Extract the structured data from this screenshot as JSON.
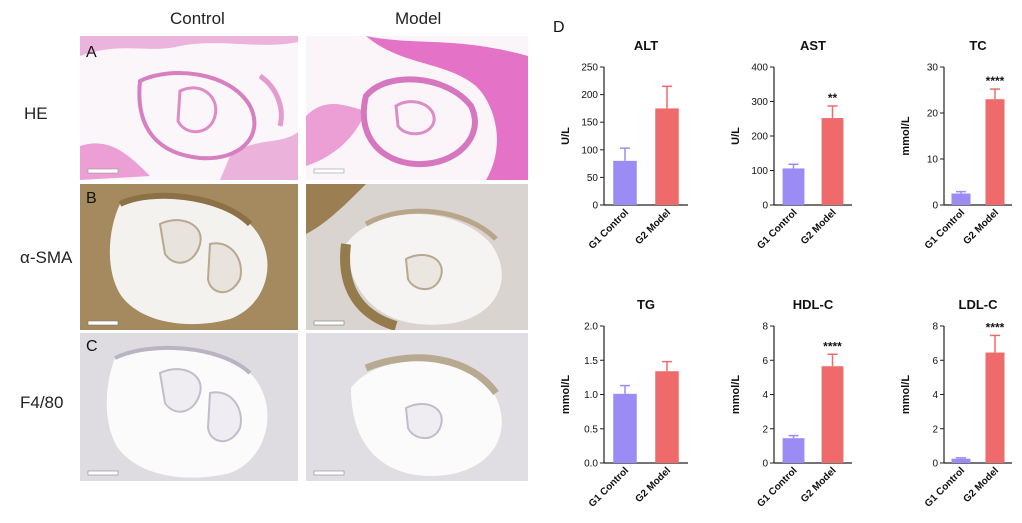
{
  "figure": {
    "column_headers": [
      "Control",
      "Model"
    ],
    "row_labels": [
      "HE",
      "α-SMA",
      "F4/80"
    ],
    "panel_letters": [
      "A",
      "B",
      "C",
      "D"
    ]
  },
  "colors": {
    "control": "#9b8cf5",
    "model": "#ef6b6b",
    "he": "#e79ad0",
    "sma": "#a48a5e",
    "f480": "#c9c4cf"
  },
  "chart_data": [
    {
      "type": "bar",
      "title": "ALT",
      "ylabel": "U/L",
      "categories": [
        "G1 Control",
        "G2 Model"
      ],
      "values": [
        80,
        175
      ],
      "errors": [
        23,
        40
      ],
      "ylim": [
        0,
        250
      ],
      "yticks": [
        0,
        50,
        100,
        150,
        200,
        250
      ],
      "significance": ""
    },
    {
      "type": "bar",
      "title": "AST",
      "ylabel": "U/L",
      "categories": [
        "G1 Control",
        "G2 Model"
      ],
      "values": [
        106,
        252
      ],
      "errors": [
        12,
        35
      ],
      "ylim": [
        0,
        400
      ],
      "yticks": [
        0,
        100,
        200,
        300,
        400
      ],
      "significance": "**"
    },
    {
      "type": "bar",
      "title": "TC",
      "ylabel": "mmol/L",
      "categories": [
        "G1 Control",
        "G2 Model"
      ],
      "values": [
        2.5,
        23
      ],
      "errors": [
        0.4,
        2.2
      ],
      "ylim": [
        0,
        30
      ],
      "yticks": [
        0,
        10,
        20,
        30
      ],
      "significance": "****"
    },
    {
      "type": "bar",
      "title": "TG",
      "ylabel": "mmol/L",
      "categories": [
        "G1 Control",
        "G2 Model"
      ],
      "values": [
        1.01,
        1.34
      ],
      "errors": [
        0.12,
        0.14
      ],
      "ylim": [
        0,
        2.0
      ],
      "yticks": [
        "0.0",
        "0.5",
        "1.0",
        "1.5",
        "2.0"
      ],
      "significance": ""
    },
    {
      "type": "bar",
      "title": "HDL-C",
      "ylabel": "mmol/L",
      "categories": [
        "G1 Control",
        "G2 Model"
      ],
      "values": [
        1.45,
        5.65
      ],
      "errors": [
        0.15,
        0.7
      ],
      "ylim": [
        0,
        8
      ],
      "yticks": [
        0,
        2,
        4,
        6,
        8
      ],
      "significance": "****"
    },
    {
      "type": "bar",
      "title": "LDL-C",
      "ylabel": "mmol/L",
      "categories": [
        "G1 Control",
        "G2 Model"
      ],
      "values": [
        0.25,
        6.45
      ],
      "errors": [
        0.05,
        1.0
      ],
      "ylim": [
        0,
        8
      ],
      "yticks": [
        0,
        2,
        4,
        6,
        8
      ],
      "significance": "****"
    }
  ]
}
